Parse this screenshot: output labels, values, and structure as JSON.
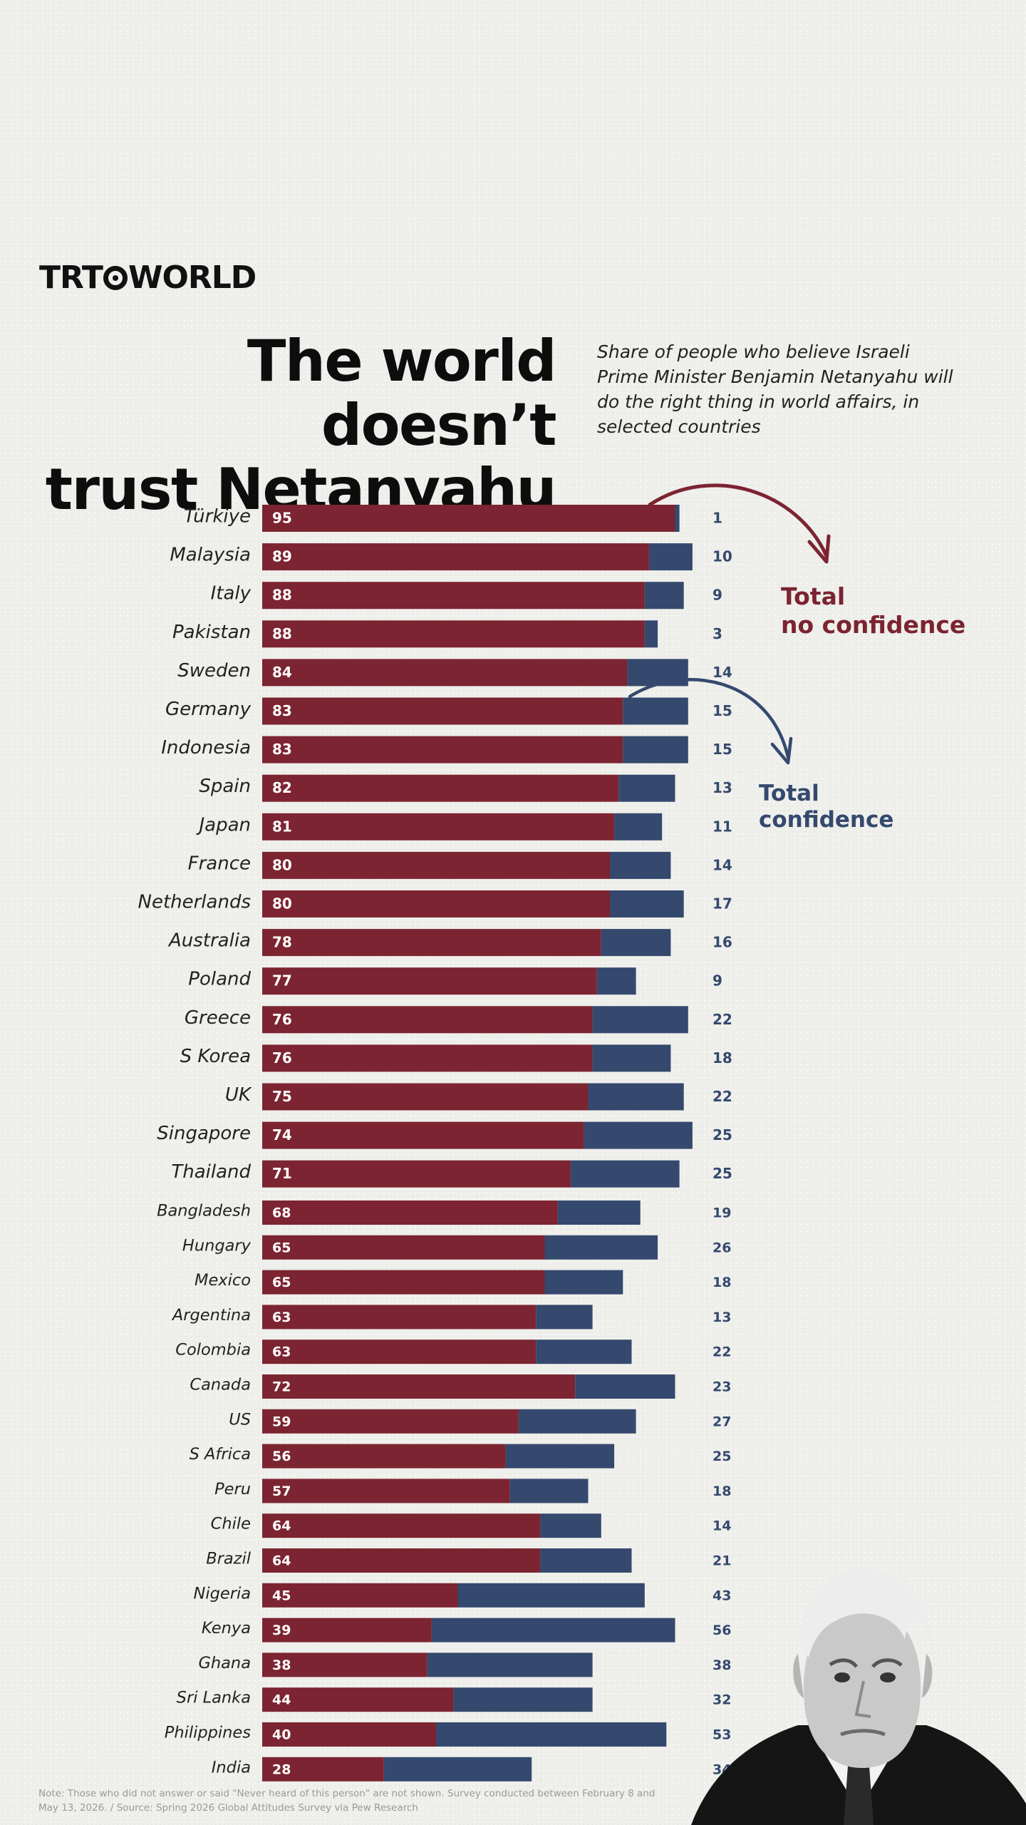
{
  "brand": {
    "logo_left": "TRT",
    "logo_right": "WORLD"
  },
  "title_line1": "The world doesn’t",
  "title_line2": "trust Netanyahu",
  "subtitle": "Share of people who believe Israeli Prime Minister Benjamin Netanyahu will do the right thing in world affairs, in selected countries",
  "legend": {
    "no_confidence_line1": "Total",
    "no_confidence_line2": "no confidence",
    "confidence_line1": "Total",
    "confidence_line2": "confidence"
  },
  "note": "Note: Those who did not answer or said \"Never heard of this person\" are not shown. Survey conducted between February 8 and May 13, 2026. / Source: Spring 2026 Global Attitudes Survey via Pew Research",
  "colors": {
    "no_confidence": "#7c2431",
    "confidence": "#34496d"
  },
  "chart_data": {
    "type": "bar",
    "orientation": "horizontal",
    "stacked": true,
    "categories": [
      "Türkiye",
      "Malaysia",
      "Italy",
      "Pakistan",
      "Sweden",
      "Germany",
      "Indonesia",
      "Spain",
      "Japan",
      "France",
      "Netherlands",
      "Australia",
      "Poland",
      "Greece",
      "S Korea",
      "UK",
      "Singapore",
      "Thailand",
      "Bangladesh",
      "Hungary",
      "Mexico",
      "Argentina",
      "Colombia",
      "Canada",
      "US",
      "S Africa",
      "Peru",
      "Chile",
      "Brazil",
      "Nigeria",
      "Kenya",
      "Ghana",
      "Sri Lanka",
      "Philippines",
      "India"
    ],
    "series": [
      {
        "name": "Total no confidence",
        "color": "#7c2431",
        "values": [
          95,
          89,
          88,
          88,
          84,
          83,
          83,
          82,
          81,
          80,
          80,
          78,
          77,
          76,
          76,
          75,
          74,
          71,
          68,
          65,
          65,
          63,
          63,
          72,
          59,
          56,
          57,
          64,
          64,
          45,
          39,
          38,
          44,
          40,
          28
        ]
      },
      {
        "name": "Total confidence",
        "color": "#34496d",
        "values": [
          1,
          10,
          9,
          3,
          14,
          15,
          15,
          13,
          11,
          14,
          17,
          16,
          9,
          22,
          18,
          22,
          25,
          25,
          19,
          26,
          18,
          13,
          22,
          23,
          27,
          25,
          18,
          14,
          21,
          43,
          56,
          38,
          32,
          53,
          34
        ]
      }
    ],
    "xlim": [
      0,
      100
    ],
    "legend": "right",
    "grid": false
  }
}
